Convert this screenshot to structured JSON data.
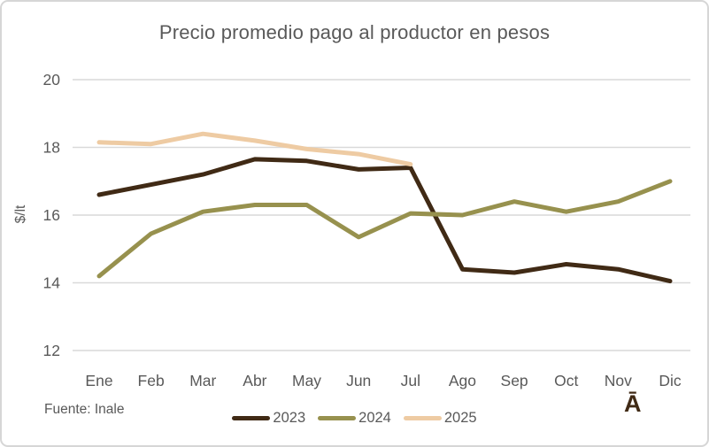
{
  "footer": {
    "source": "Fuente: Inale",
    "watermark": "Ā"
  },
  "colors": {
    "gridline": "#d9d9d9",
    "axis_text": "#595959",
    "border": "#d6d6d6",
    "background": "#ffffff"
  },
  "chart_data": {
    "type": "line",
    "title": "Precio promedio pago al productor en pesos",
    "xlabel": "",
    "ylabel": "$/lt",
    "x_categories": [
      "Ene",
      "Feb",
      "Mar",
      "Abr",
      "May",
      "Jun",
      "Jul",
      "Ago",
      "Sep",
      "Oct",
      "Nov",
      "Dic"
    ],
    "y_ticks": [
      12,
      14,
      16,
      18,
      20
    ],
    "ylim": [
      12,
      20
    ],
    "grid": "horizontal",
    "legend_position": "bottom",
    "series": [
      {
        "name": "2023",
        "color": "#402a15",
        "values": [
          16.6,
          16.9,
          17.2,
          17.65,
          17.6,
          17.35,
          17.4,
          14.4,
          14.3,
          14.55,
          14.4,
          14.05
        ]
      },
      {
        "name": "2024",
        "color": "#97914e",
        "values": [
          14.2,
          15.45,
          16.1,
          16.3,
          16.3,
          15.35,
          16.05,
          16.0,
          16.4,
          16.1,
          16.4,
          17.0
        ]
      },
      {
        "name": "2025",
        "color": "#eecba3",
        "values": [
          18.15,
          18.1,
          18.4,
          18.2,
          17.95,
          17.8,
          17.5,
          null,
          null,
          null,
          null,
          null
        ]
      }
    ]
  }
}
